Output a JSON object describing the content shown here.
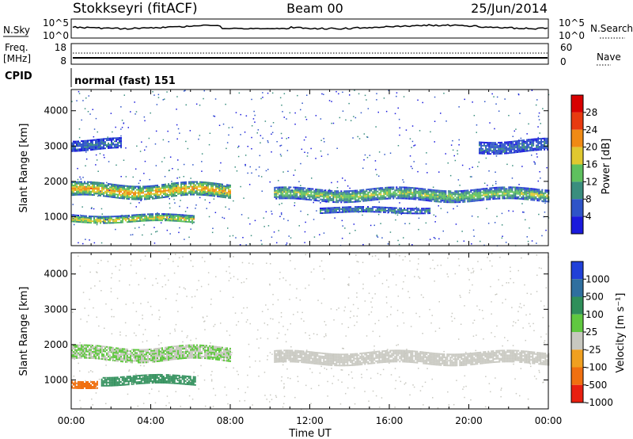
{
  "header": {
    "station": "Stokkseyri (fitACF)",
    "beam": "Beam 00",
    "date": "25/Jun/2014"
  },
  "sky_panel": {
    "left_label": "N.Sky",
    "left_ticks": [
      "10^5",
      "10^0"
    ],
    "right_label": "N.Search",
    "right_ticks": [
      "10^5",
      "10^0"
    ]
  },
  "freq_panel": {
    "left_label_line1": "Freq.",
    "left_label_line2": "[MHz]",
    "left_ticks": [
      "18",
      "8"
    ],
    "right_label": "Nave",
    "right_ticks": [
      "60",
      "0"
    ]
  },
  "cpid": {
    "label": "CPID",
    "mode": "normal (fast) 151"
  },
  "chart_data": [
    {
      "type": "heatmap",
      "quantity": "Power",
      "ylabel": "Slant Range [km]",
      "ylim": [
        180,
        4600
      ],
      "yticks": [
        "1000",
        "2000",
        "3000",
        "4000"
      ],
      "xlim_hours": [
        0,
        24
      ],
      "colorbar": {
        "label": "Power [dB]",
        "ticks": [
          "4",
          "8",
          "12",
          "16",
          "20",
          "24",
          "28"
        ],
        "colors": [
          "#1a1adc",
          "#2e54c8",
          "#3a8e7e",
          "#5ec05e",
          "#e0c830",
          "#f08a14",
          "#e83a10",
          "#d80000"
        ]
      },
      "bands": [
        {
          "t_start": 0.0,
          "t_end": 8.0,
          "r_center": 1750,
          "r_width": 380,
          "level": 20
        },
        {
          "t_start": 10.2,
          "t_end": 24.0,
          "r_center": 1640,
          "r_width": 320,
          "level": 14
        },
        {
          "t_start": 0.0,
          "t_end": 6.2,
          "r_center": 950,
          "r_width": 220,
          "level": 18
        },
        {
          "t_start": 12.5,
          "t_end": 18.0,
          "r_center": 1200,
          "r_width": 150,
          "level": 9
        },
        {
          "t_start": 0.0,
          "t_end": 2.5,
          "r_center": 3050,
          "r_width": 300,
          "level": 6
        },
        {
          "t_start": 20.5,
          "t_end": 24.0,
          "r_center": 3000,
          "r_width": 350,
          "level": 6
        }
      ]
    },
    {
      "type": "heatmap",
      "quantity": "Velocity",
      "ylabel": "Slant Range [km]",
      "ylim": [
        180,
        4600
      ],
      "yticks": [
        "1000",
        "2000",
        "3000",
        "4000"
      ],
      "xlim_hours": [
        0,
        24
      ],
      "xticks": [
        "00:00",
        "04:00",
        "08:00",
        "12:00",
        "16:00",
        "20:00",
        "00:00"
      ],
      "xlabel": "Time UT",
      "colorbar": {
        "label": "Velocity [m s⁻¹]",
        "ticks": [
          "1000",
          "500",
          "100",
          "25",
          "-25",
          "-100",
          "-500",
          "-1000"
        ],
        "colors": [
          "#2040d8",
          "#2f6f9f",
          "#2f8f5a",
          "#60c840",
          "#c8c8c0",
          "#f0a020",
          "#f07010",
          "#e82010"
        ]
      },
      "bands": [
        {
          "t_start": 0.0,
          "t_end": 8.0,
          "r_center": 1750,
          "r_width": 380,
          "level": 25
        },
        {
          "t_start": 10.2,
          "t_end": 24.0,
          "r_center": 1640,
          "r_width": 320,
          "level": 0
        },
        {
          "t_start": 1.5,
          "t_end": 6.2,
          "r_center": 1000,
          "r_width": 250,
          "level": 150
        },
        {
          "t_start": 0.0,
          "t_end": 1.3,
          "r_center": 900,
          "r_width": 200,
          "level": -200
        }
      ]
    }
  ]
}
